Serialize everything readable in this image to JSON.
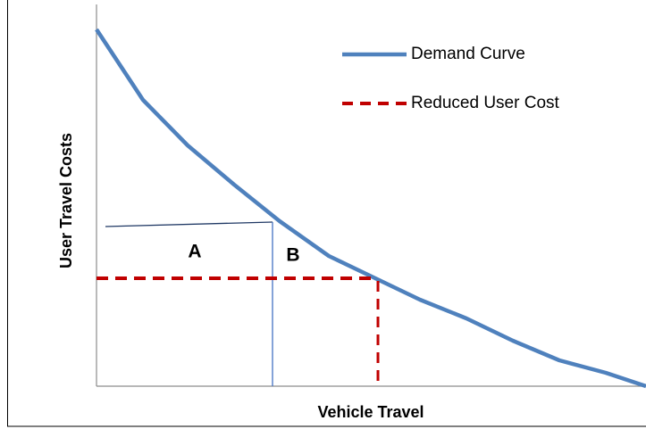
{
  "diagram": {
    "y_axis_label": "User Travel Costs",
    "x_axis_label": "Vehicle Travel",
    "legend": [
      "Demand Curve",
      "Reduced User Cost"
    ],
    "regions": [
      "A",
      "B"
    ]
  }
}
